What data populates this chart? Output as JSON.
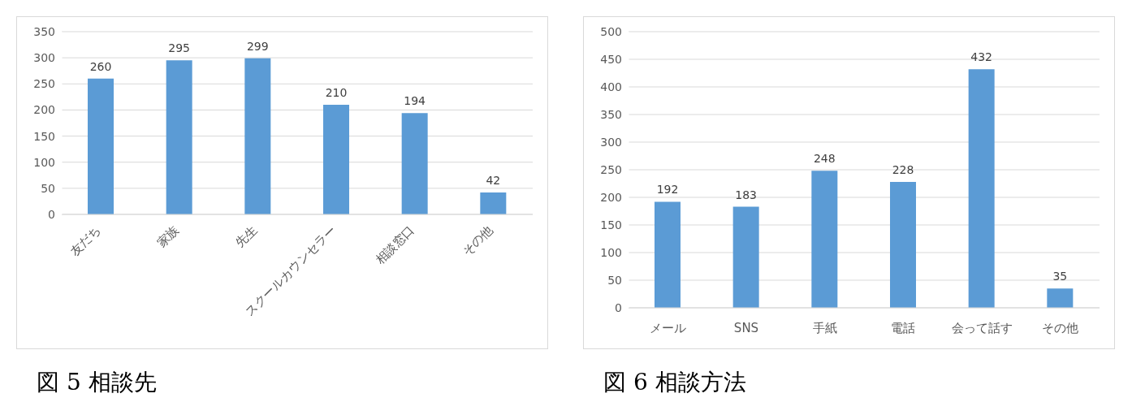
{
  "chart_data": [
    {
      "type": "bar",
      "title": "図 5 相談先",
      "categories": [
        "友だち",
        "家族",
        "先生",
        "スクールカウンセラー",
        "相談窓口",
        "その他"
      ],
      "values": [
        260,
        295,
        299,
        210,
        194,
        42
      ],
      "color": "#5b9bd5",
      "ylim": [
        0,
        350
      ],
      "yticks": [
        0,
        50,
        100,
        150,
        200,
        250,
        300,
        350
      ],
      "grid": "y",
      "data_labels": true
    },
    {
      "type": "bar",
      "title": "図 6 相談方法",
      "categories": [
        "メール",
        "SNS",
        "手紙",
        "電話",
        "会って話す",
        "その他"
      ],
      "values": [
        192,
        183,
        248,
        228,
        432,
        35
      ],
      "color": "#5b9bd5",
      "ylim": [
        0,
        500
      ],
      "yticks": [
        0,
        50,
        100,
        150,
        200,
        250,
        300,
        350,
        400,
        450,
        500
      ],
      "grid": "y",
      "data_labels": true
    }
  ]
}
